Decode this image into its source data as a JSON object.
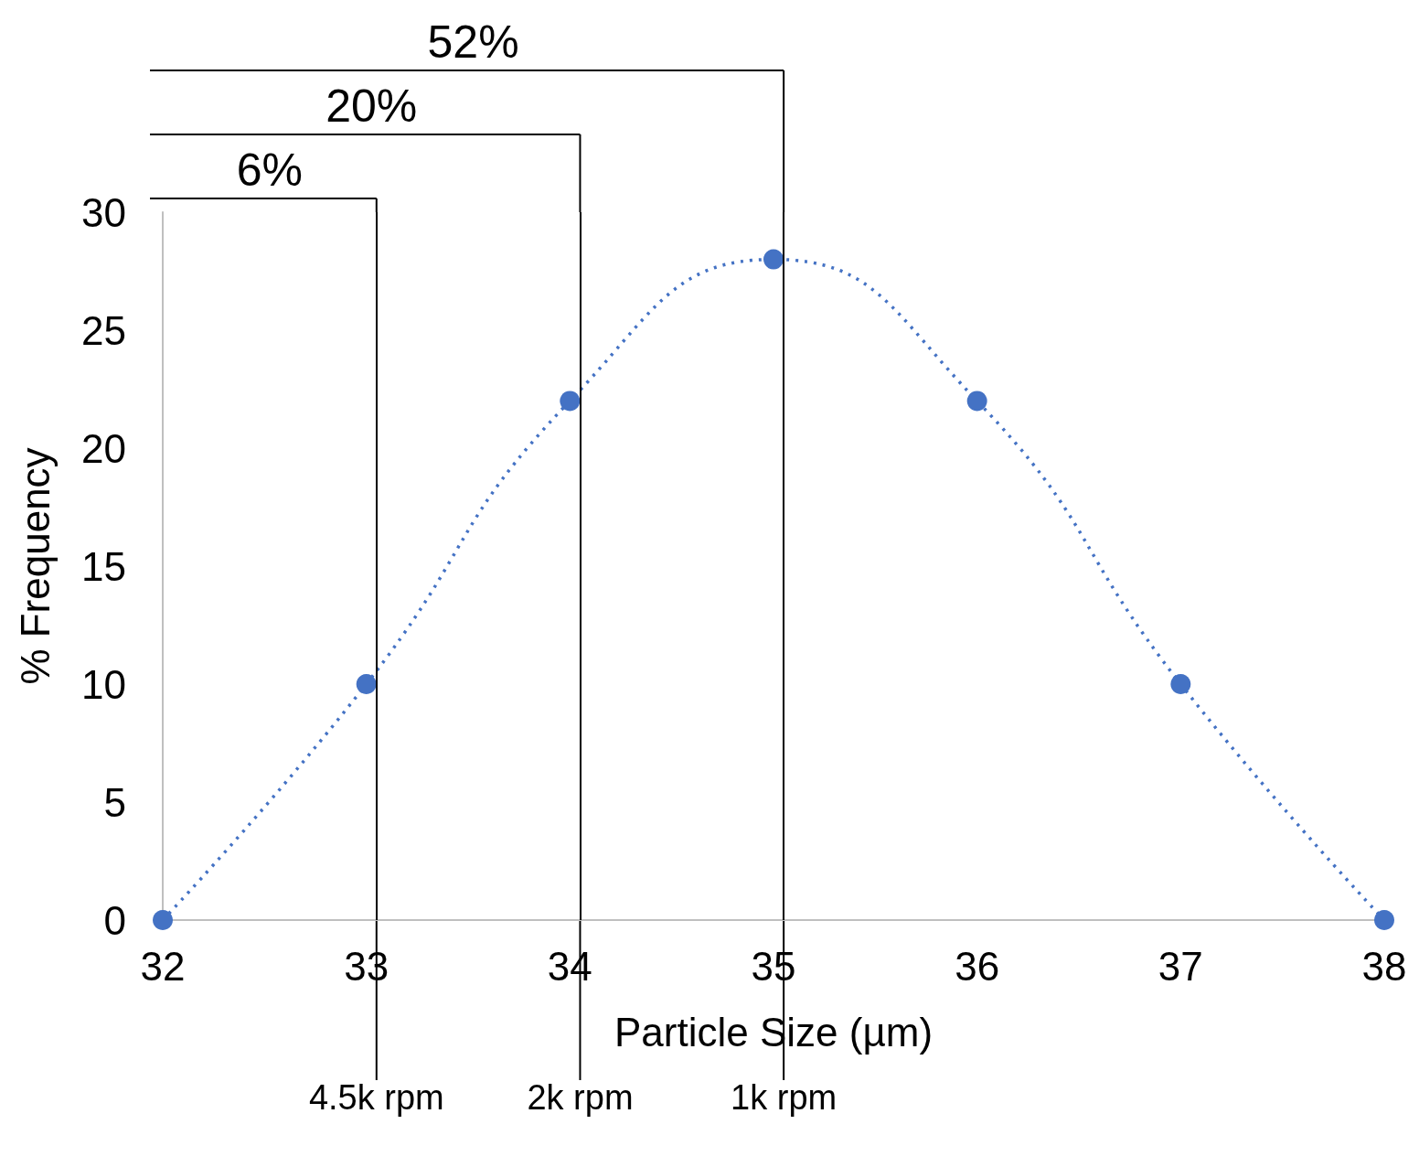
{
  "chart_data": {
    "type": "line",
    "xlabel": "Particle Size (µm)",
    "ylabel": "% Frequency",
    "x": [
      32,
      33,
      34,
      35,
      36,
      37,
      38
    ],
    "series": [
      {
        "color": "#4472c4",
        "values": [
          0,
          10,
          22,
          28,
          22,
          10,
          0
        ]
      }
    ],
    "xlim": [
      32,
      38
    ],
    "xticks": [
      32,
      33,
      34,
      35,
      36,
      37,
      38
    ],
    "ylim": [
      0,
      30
    ],
    "yticks": [
      0,
      5,
      10,
      15,
      20,
      25,
      30
    ],
    "grid": false,
    "marker": "circle",
    "line_style": "dotted",
    "ref_lines": [
      {
        "axis": "x",
        "value": 33.05,
        "label": "4.5k rpm",
        "color": "#000000"
      },
      {
        "axis": "x",
        "value": 34.05,
        "label": "2k rpm",
        "color": "#000000"
      },
      {
        "axis": "x",
        "value": 35.05,
        "label": "1k rpm",
        "color": "#000000"
      }
    ],
    "annotations": [
      "6%",
      "20%",
      "52%"
    ]
  }
}
